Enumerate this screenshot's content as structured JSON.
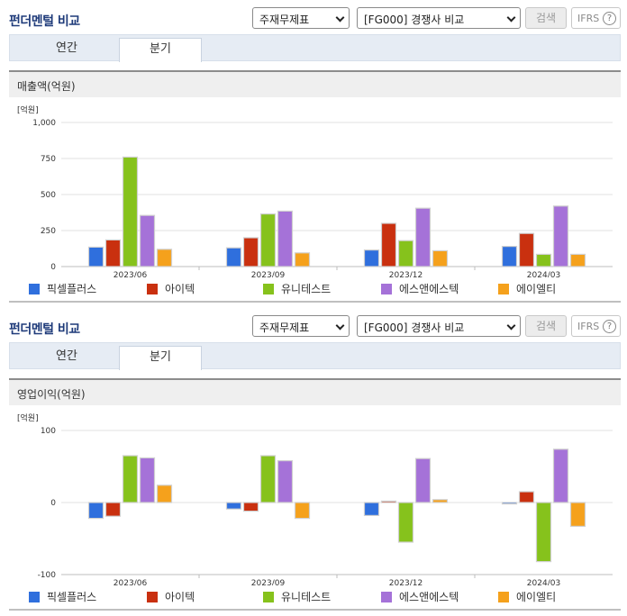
{
  "panels": [
    {
      "header": {
        "title": "펀더멘털 비교",
        "select_a": "주재무제표",
        "select_b": "[FG000] 경쟁사 비교",
        "search_label": "검색",
        "ifrs_label": "IFRS",
        "help_glyph": "?"
      },
      "tabs": {
        "annual": "연간",
        "quarter": "분기"
      },
      "chart_title": "매출액(억원)"
    },
    {
      "header": {
        "title": "펀더멘털 비교",
        "select_a": "주재무제표",
        "select_b": "[FG000] 경쟁사 비교",
        "search_label": "검색",
        "ifrs_label": "IFRS",
        "help_glyph": "?"
      },
      "tabs": {
        "annual": "연간",
        "quarter": "분기"
      },
      "chart_title": "영업이익(억원)"
    }
  ],
  "colors": {
    "픽셀플러스": "#2f6fdd",
    "아이텍": "#c9300f",
    "유니테스트": "#86c21c",
    "에스앤에스텍": "#a572d8",
    "에이엘티": "#f5a11c"
  },
  "chart_data": [
    {
      "type": "bar",
      "unit_label": "[억원]",
      "categories": [
        "2023/06",
        "2023/09",
        "2023/12",
        "2024/03"
      ],
      "ylim": [
        0,
        1000
      ],
      "yticks": [
        0,
        250,
        500,
        750,
        1000
      ],
      "ytick_labels": [
        "0",
        "250",
        "500",
        "750",
        "1,000"
      ],
      "legend_position": "bottom",
      "series": [
        {
          "name": "픽셀플러스",
          "values": [
            135,
            130,
            115,
            140
          ]
        },
        {
          "name": "아이텍",
          "values": [
            185,
            200,
            300,
            230
          ]
        },
        {
          "name": "유니테스트",
          "values": [
            760,
            365,
            180,
            85
          ]
        },
        {
          "name": "에스앤에스텍",
          "values": [
            355,
            385,
            405,
            420
          ]
        },
        {
          "name": "에이엘티",
          "values": [
            120,
            95,
            110,
            85
          ]
        }
      ]
    },
    {
      "type": "bar",
      "unit_label": "[억원]",
      "categories": [
        "2023/06",
        "2023/09",
        "2023/12",
        "2024/03"
      ],
      "ylim": [
        -100,
        100
      ],
      "yticks": [
        -100,
        0,
        100
      ],
      "ytick_labels": [
        "-100",
        "0",
        "100"
      ],
      "legend_position": "bottom",
      "series": [
        {
          "name": "픽셀플러스",
          "values": [
            -22,
            -9,
            -18,
            -2
          ]
        },
        {
          "name": "아이텍",
          "values": [
            -19,
            -12,
            2,
            15
          ]
        },
        {
          "name": "유니테스트",
          "values": [
            65,
            65,
            -55,
            -82
          ]
        },
        {
          "name": "에스앤에스텍",
          "values": [
            62,
            58,
            61,
            74
          ]
        },
        {
          "name": "에이엘티",
          "values": [
            24,
            -22,
            4,
            -33
          ]
        }
      ]
    }
  ]
}
